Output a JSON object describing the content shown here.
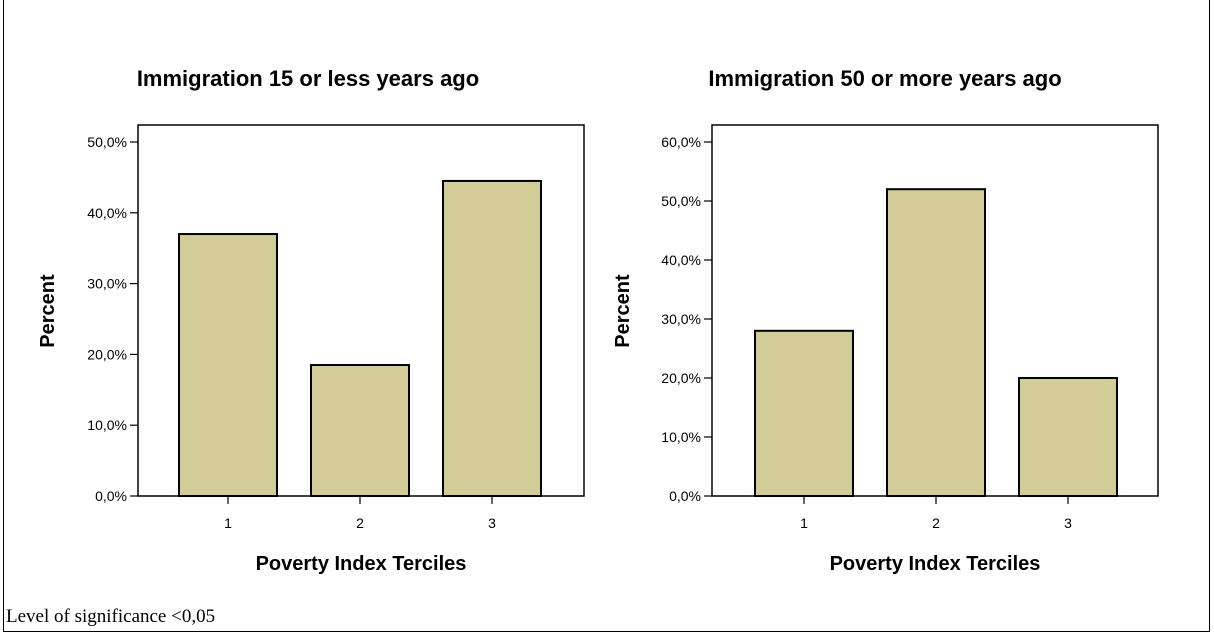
{
  "footnote": "Level of significance <0,05",
  "colors": {
    "bar_fill": "#d3cc96",
    "bar_stroke": "#000000"
  },
  "chart_data": [
    {
      "type": "bar",
      "title": "Immigration 15 or less years ago",
      "xlabel": "Poverty Index Terciles",
      "ylabel": "Percent",
      "categories": [
        "1",
        "2",
        "3"
      ],
      "values": [
        37.0,
        18.5,
        44.5
      ],
      "ylim": [
        0,
        50
      ],
      "yticks": [
        0,
        10,
        20,
        30,
        40,
        50
      ],
      "ytick_labels": [
        "0,0%",
        "10,0%",
        "20,0%",
        "30,0%",
        "40,0%",
        "50,0%"
      ],
      "grid": false,
      "legend": "none"
    },
    {
      "type": "bar",
      "title": "Immigration 50 or more years ago",
      "xlabel": "Poverty Index Terciles",
      "ylabel": "Percent",
      "categories": [
        "1",
        "2",
        "3"
      ],
      "values": [
        28.0,
        52.0,
        20.0
      ],
      "ylim": [
        0,
        60
      ],
      "yticks": [
        0,
        10,
        20,
        30,
        40,
        50,
        60
      ],
      "ytick_labels": [
        "0,0%",
        "10,0%",
        "20,0%",
        "30,0%",
        "40,0%",
        "50,0%",
        "60,0%"
      ],
      "grid": false,
      "legend": "none"
    }
  ]
}
